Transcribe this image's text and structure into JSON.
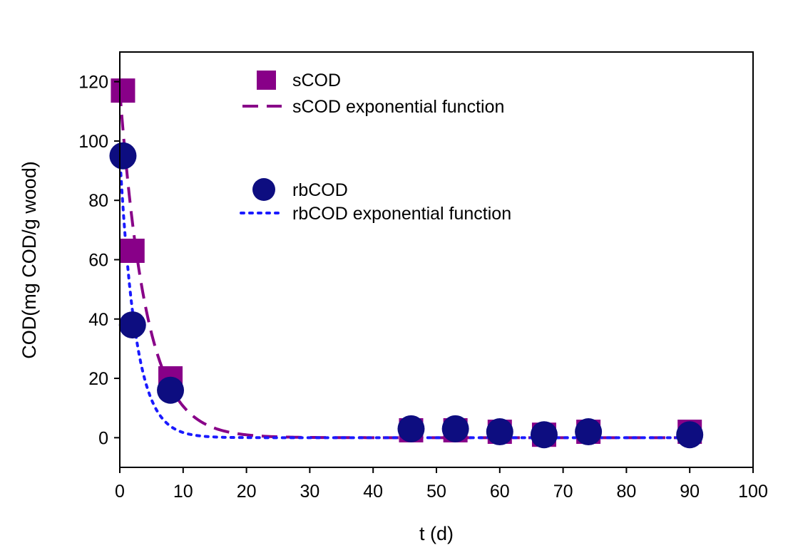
{
  "chart_data": {
    "type": "scatter",
    "title": "",
    "xlabel": "t (d)",
    "ylabel": "COD(mg COD/g wood)",
    "xlim": [
      0,
      100
    ],
    "ylim": [
      -10,
      130
    ],
    "xticks": [
      0,
      10,
      20,
      30,
      40,
      50,
      60,
      70,
      80,
      90,
      100
    ],
    "yticks": [
      0,
      20,
      40,
      60,
      80,
      100,
      120
    ],
    "grid": false,
    "legend_position": "top-center",
    "series": [
      {
        "name": "sCOD",
        "kind": "marker",
        "marker": "square",
        "color": "#880088",
        "x": [
          0.5,
          2,
          8,
          46,
          53,
          60,
          67,
          74,
          90
        ],
        "y": [
          117,
          63,
          20,
          2.5,
          2.5,
          2,
          1,
          2,
          2
        ]
      },
      {
        "name": "sCOD exponential function",
        "kind": "line",
        "style": "dashed",
        "color": "#880088",
        "y0": 117,
        "k": 0.24,
        "x_range": [
          0,
          90
        ]
      },
      {
        "name": "rbCOD",
        "kind": "marker",
        "marker": "circle",
        "color": "#0d0d80",
        "x": [
          0.5,
          2,
          8,
          46,
          53,
          60,
          67,
          74,
          90
        ],
        "y": [
          95,
          38,
          16,
          3,
          3,
          2,
          1,
          2,
          1
        ]
      },
      {
        "name": "rbCOD exponential function",
        "kind": "line",
        "style": "dotted",
        "color": "#1a1aff",
        "y0": 95,
        "k": 0.4,
        "x_range": [
          0,
          90
        ]
      }
    ]
  }
}
